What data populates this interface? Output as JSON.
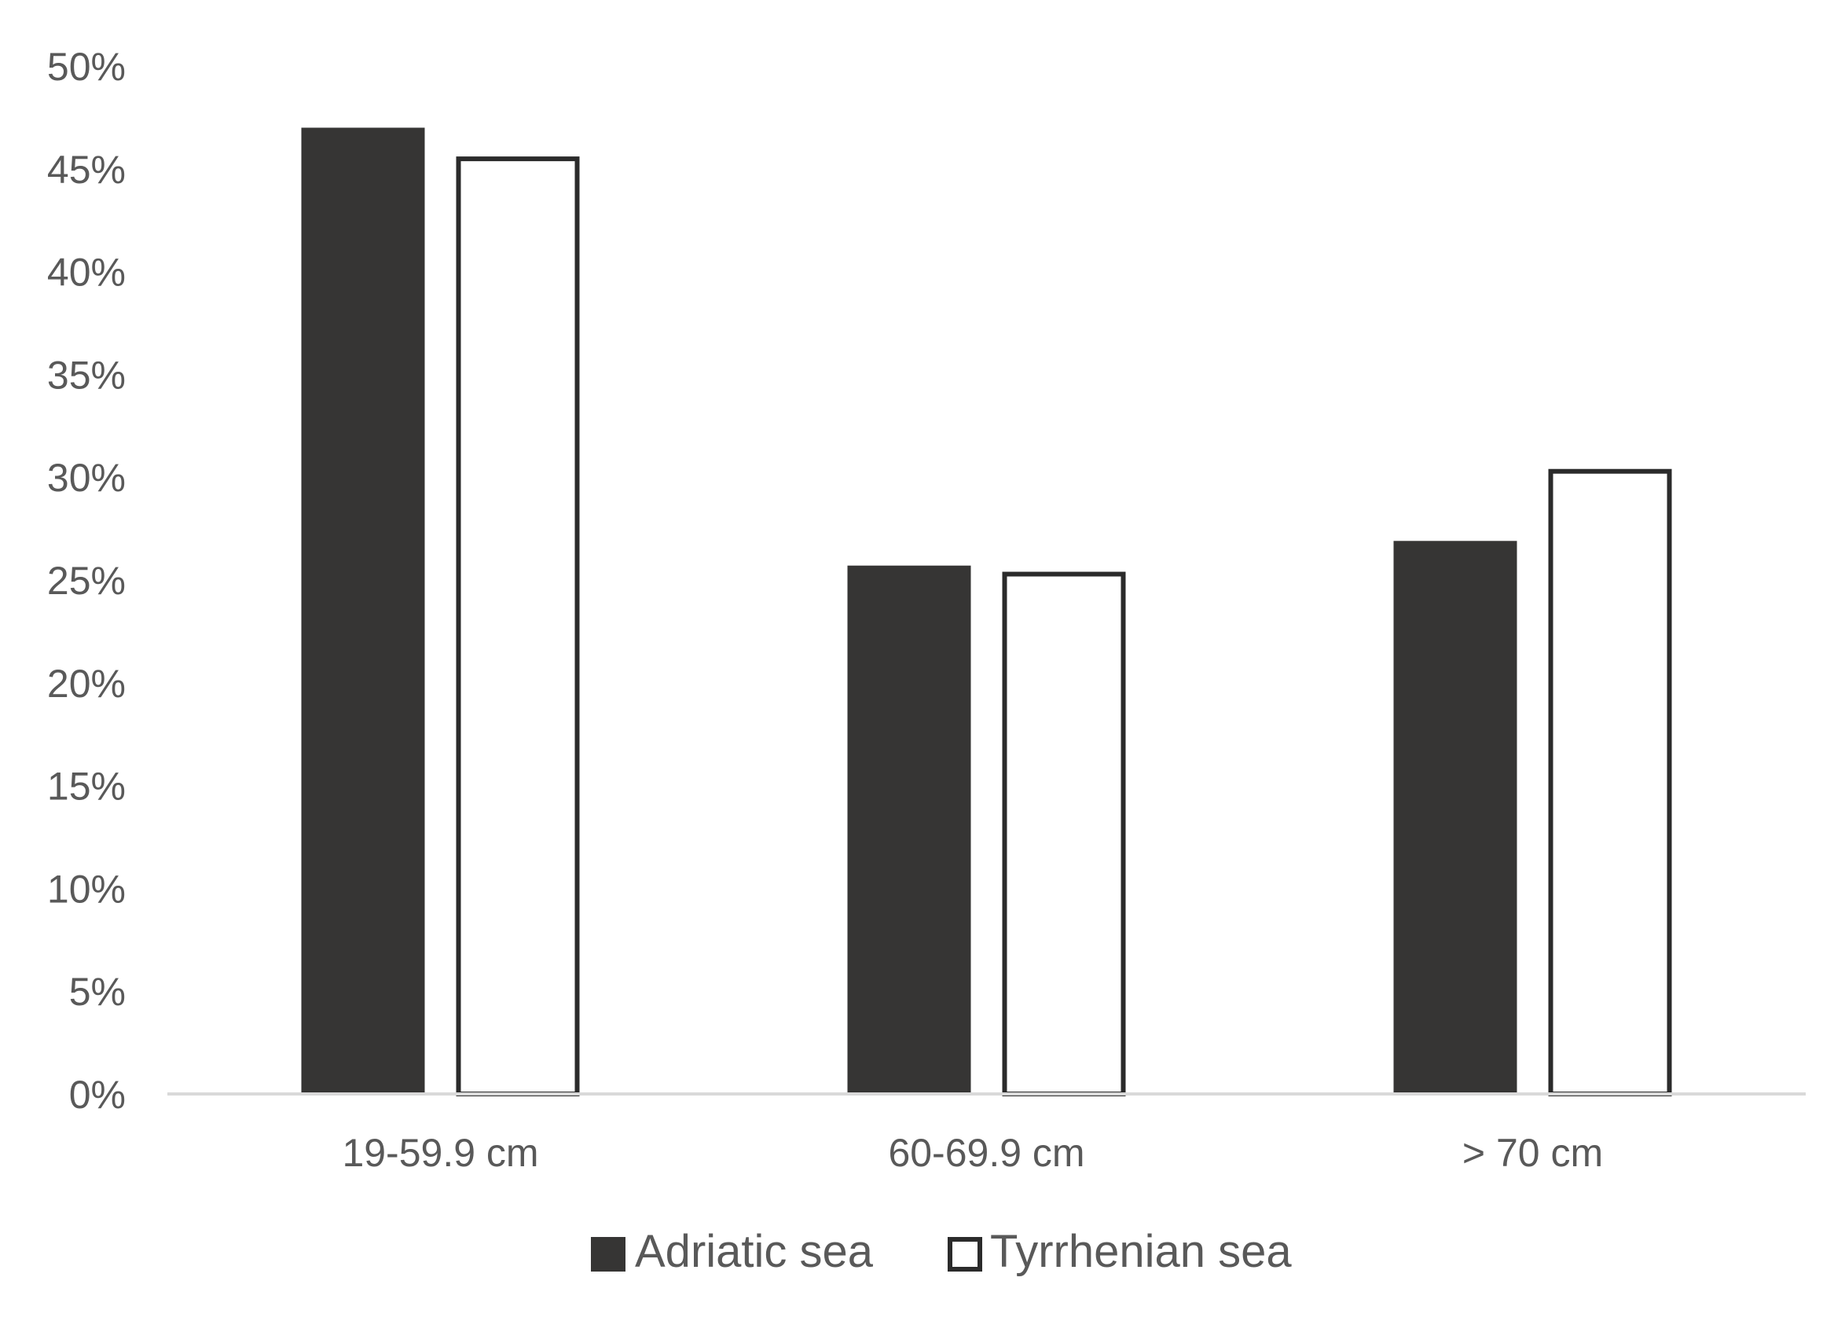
{
  "chart_data": {
    "type": "bar",
    "title": "",
    "xlabel": "",
    "ylabel": "",
    "categories": [
      "19-59.9 cm",
      "60-69.9 cm",
      "> 70 cm"
    ],
    "series": [
      {
        "name": "Adriatic sea",
        "values": [
          47,
          25.7,
          26.9
        ],
        "color": "#363534",
        "style": "filled"
      },
      {
        "name": "Tyrrhenian sea",
        "values": [
          45.6,
          25.4,
          30.4
        ],
        "color": "#ffffff",
        "stroke": "#2b2b2b",
        "style": "outlined"
      }
    ],
    "ylim": [
      0,
      50
    ],
    "yticks": [
      "0%",
      "5%",
      "10%",
      "15%",
      "20%",
      "25%",
      "30%",
      "35%",
      "40%",
      "45%",
      "50%"
    ],
    "ytick_values": [
      0,
      5,
      10,
      15,
      20,
      25,
      30,
      35,
      40,
      45,
      50
    ],
    "grid": false,
    "legend_position": "bottom-center"
  }
}
